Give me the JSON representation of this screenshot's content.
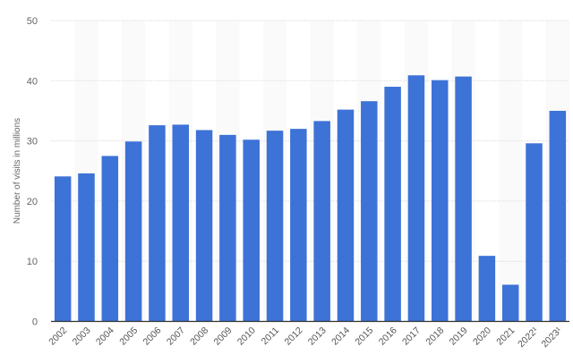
{
  "chart_data": {
    "type": "bar",
    "title": "",
    "xlabel": "",
    "ylabel": "Number of visits in millions",
    "ylim": [
      0,
      50
    ],
    "yticks": [
      0,
      10,
      20,
      30,
      40,
      50
    ],
    "grid": true,
    "legend": null,
    "categories": [
      "2002",
      "2003",
      "2004",
      "2005",
      "2006",
      "2007",
      "2008",
      "2009",
      "2010",
      "2011",
      "2012",
      "2013",
      "2014",
      "2015",
      "2016",
      "2017",
      "2018",
      "2019",
      "2020",
      "2021",
      "2022¹",
      "2023¹"
    ],
    "values": [
      24.1,
      24.6,
      27.5,
      29.9,
      32.6,
      32.7,
      31.8,
      31.0,
      30.2,
      31.7,
      32.0,
      33.3,
      35.2,
      36.6,
      39.0,
      40.9,
      40.1,
      40.7,
      10.9,
      6.1,
      29.6,
      35.0
    ],
    "series": [
      {
        "name": "Number of visits in millions",
        "values": [
          24.1,
          24.6,
          27.5,
          29.9,
          32.6,
          32.7,
          31.8,
          31.0,
          30.2,
          31.7,
          32.0,
          33.3,
          35.2,
          36.6,
          39.0,
          40.9,
          40.1,
          40.7,
          10.9,
          6.1,
          29.6,
          35.0
        ]
      }
    ]
  },
  "colors": {
    "bar": "#3d72d7",
    "band": "#fafafa",
    "grid": "#e3e3e3",
    "axis": "#333333"
  }
}
